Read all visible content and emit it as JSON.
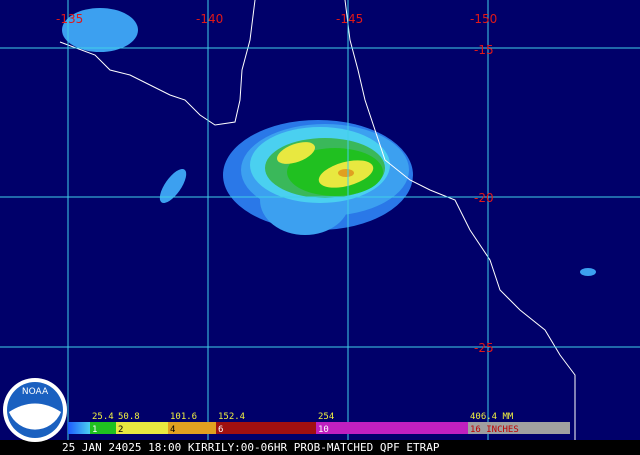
{
  "grid_labels": {
    "longitude": [
      "-135",
      "-140",
      "-145",
      "-150"
    ],
    "latitude": [
      "-15",
      "-20",
      "-25"
    ]
  },
  "legend": {
    "mm": [
      "25.4",
      "50.8",
      "101.6",
      "152.4",
      "254",
      "406.4 MM"
    ],
    "inches": [
      "1",
      "2",
      "4",
      "6",
      "10",
      "16 INCHES"
    ]
  },
  "caption": "25 JAN 24025 18:00 KIRRILY:00-06HR PROB-MATCHED QPF ETRAP",
  "logo": "NOAA"
}
